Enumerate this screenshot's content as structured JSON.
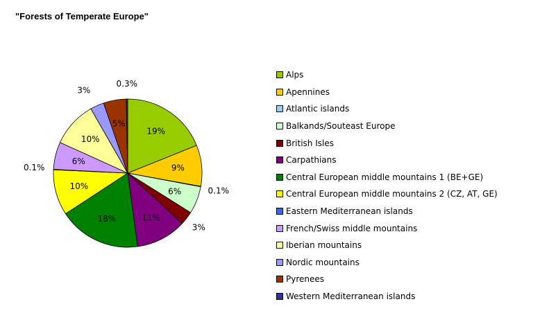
{
  "chart_data": {
    "type": "pie",
    "title": "\"Forests of Temperate Europe\"",
    "legend_position": "right",
    "start_angle_deg": -90,
    "direction": "clockwise",
    "slices": [
      {
        "name": "Alps",
        "value": 19,
        "label": "19%",
        "color": "#99CC00"
      },
      {
        "name": "Apennines",
        "value": 9,
        "label": "9%",
        "color": "#FFCC00"
      },
      {
        "name": "Atlantic islands",
        "value": 0.1,
        "label": "0.1%",
        "color": "#99CCFF"
      },
      {
        "name": "Balkands/Souteast Europe",
        "value": 6,
        "label": "6%",
        "color": "#CCFFCC"
      },
      {
        "name": "British Isles",
        "value": 3,
        "label": "3%",
        "color": "#800000"
      },
      {
        "name": "Carpathians",
        "value": 11,
        "label": "11%",
        "color": "#800080"
      },
      {
        "name": "Central European middle mountains 1 (BE+GE)",
        "value": 18,
        "label": "18%",
        "color": "#008000"
      },
      {
        "name": "Central European middle mountains 2 (CZ, AT, GE)",
        "value": 10,
        "label": "10%",
        "color": "#FFFF00"
      },
      {
        "name": "Eastern Mediterranean islands",
        "value": 0.1,
        "label": "0.1%",
        "color": "#3366FF"
      },
      {
        "name": "French/Swiss middle mountains",
        "value": 6,
        "label": "6%",
        "color": "#CC99FF"
      },
      {
        "name": "Iberian mountains",
        "value": 10,
        "label": "10%",
        "color": "#FFFF99"
      },
      {
        "name": "Nordic mountains",
        "value": 3,
        "label": "3%",
        "color": "#9999FF"
      },
      {
        "name": "Pyrenees",
        "value": 5,
        "label": "5%",
        "color": "#993300"
      },
      {
        "name": "Western Mediterranean islands",
        "value": 0.3,
        "label": "0.3%",
        "color": "#333399"
      }
    ]
  }
}
